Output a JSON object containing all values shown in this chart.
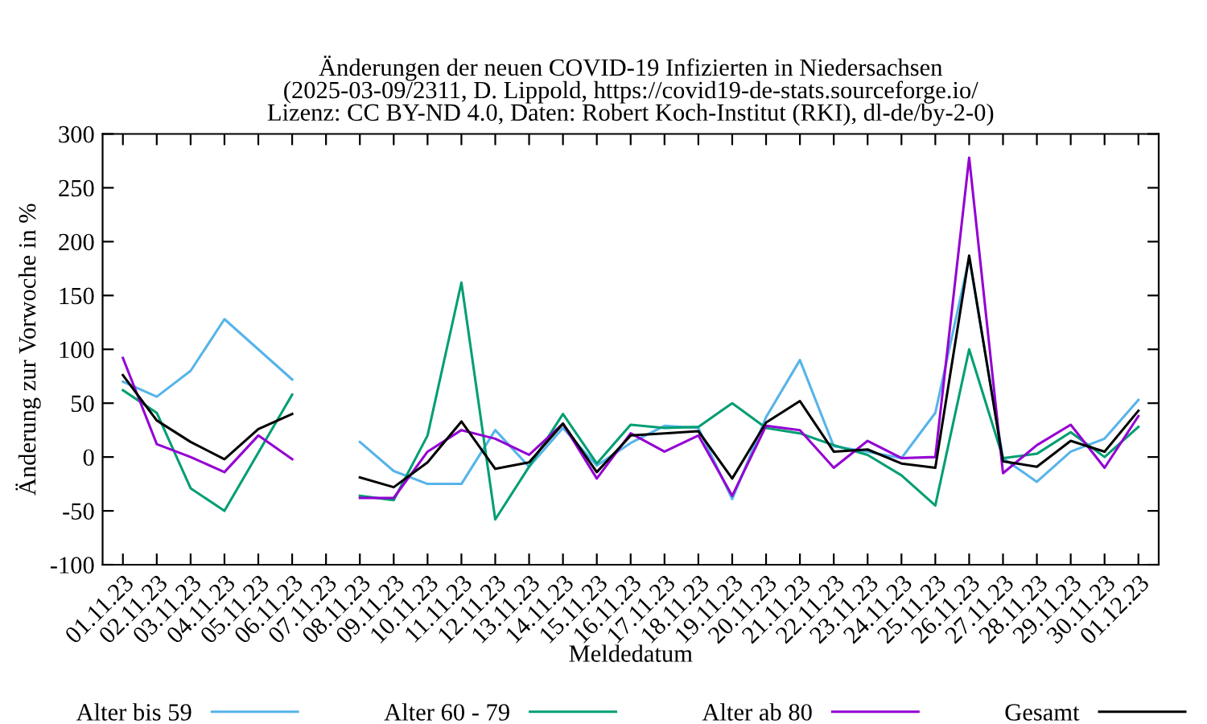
{
  "chart_data": {
    "type": "line",
    "title": "Änderungen der neuen COVID-19 Infizierten in Niedersachsen\n(2025-03-09/2311, D. Lippold, https://covid19-de-stats.sourceforge.io/\nLizenz: CC BY-ND 4.0, Daten: Robert Koch-Institut (RKI), dl-de/by-2-0)",
    "xlabel": "Meldedatum",
    "ylabel": "Änderung zur Vorwoche in %",
    "categories": [
      "01.11.23",
      "02.11.23",
      "03.11.23",
      "04.11.23",
      "05.11.23",
      "06.11.23",
      "07.11.23",
      "08.11.23",
      "09.11.23",
      "10.11.23",
      "11.11.23",
      "12.11.23",
      "13.11.23",
      "14.11.23",
      "15.11.23",
      "16.11.23",
      "17.11.23",
      "18.11.23",
      "19.11.23",
      "20.11.23",
      "21.11.23",
      "22.11.23",
      "23.11.23",
      "24.11.23",
      "25.11.23",
      "26.11.23",
      "27.11.23",
      "28.11.23",
      "29.11.23",
      "30.11.23",
      "01.12.23"
    ],
    "series": [
      {
        "name": "Alter bis 59",
        "color": "#56b4e9",
        "values": [
          70,
          56,
          80,
          128,
          100,
          72,
          null,
          14,
          -13,
          -25,
          -25,
          25,
          -9,
          27,
          -8,
          13,
          29,
          27,
          -39,
          37,
          90,
          10,
          5,
          -1,
          41,
          185,
          -1,
          -23,
          5,
          17,
          53
        ]
      },
      {
        "name": "Alter 60 - 79",
        "color": "#009e73",
        "values": [
          62,
          41,
          -29,
          -50,
          4,
          58,
          null,
          -36,
          -40,
          20,
          162,
          -58,
          -9,
          40,
          -6,
          30,
          27,
          28,
          50,
          27,
          22,
          11,
          2,
          -17,
          -45,
          100,
          -1,
          3,
          23,
          0,
          28
        ]
      },
      {
        "name": "Alter ab 80",
        "color": "#9400d3",
        "values": [
          92,
          12,
          0,
          -14,
          20,
          -2,
          null,
          -38,
          -38,
          5,
          25,
          17,
          2,
          31,
          -20,
          22,
          5,
          20,
          -36,
          29,
          25,
          -10,
          15,
          -1,
          0,
          278,
          -15,
          11,
          30,
          -10,
          38
        ]
      },
      {
        "name": "Gesamt",
        "color": "#000000",
        "values": [
          76,
          34,
          14,
          -2,
          26,
          40,
          null,
          -19,
          -28,
          -5,
          33,
          -11,
          -5,
          31,
          -14,
          20,
          22,
          24,
          -20,
          32,
          52,
          5,
          7,
          -6,
          -10,
          187,
          -4,
          -9,
          15,
          5,
          43
        ]
      }
    ],
    "ylim": [
      -100,
      300
    ],
    "yticks": [
      -100,
      -50,
      0,
      50,
      100,
      150,
      200,
      250,
      300
    ],
    "legend": "bottom",
    "line_style": "solid",
    "marker": "none",
    "grid": false
  }
}
